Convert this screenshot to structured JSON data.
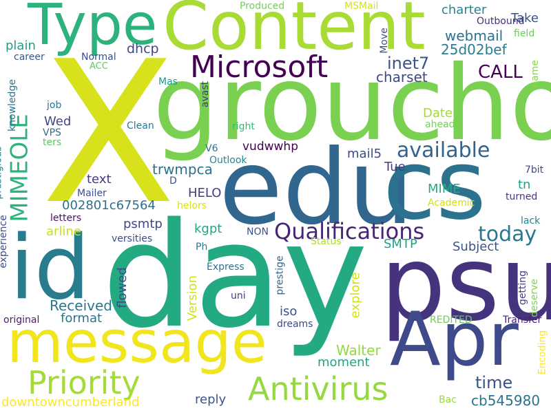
{
  "colors": {
    "background": "#ffffff",
    "palette": [
      "#fde725",
      "#b5de2b",
      "#6ece58",
      "#35b779",
      "#1f9e89",
      "#26828e",
      "#31688e",
      "#3e4989",
      "#482878",
      "#440154"
    ]
  },
  "words": [
    {
      "text": "X",
      "color": "#d8e21c"
    },
    {
      "text": "groucho",
      "color": "#7ad151"
    },
    {
      "text": "Content",
      "color": "#a8db34"
    },
    {
      "text": "Type",
      "color": "#2db27d"
    },
    {
      "text": "edu",
      "color": "#31668e"
    },
    {
      "text": "cs",
      "color": "#2c728e"
    },
    {
      "text": "day",
      "color": "#24aa83"
    },
    {
      "text": "id",
      "color": "#287c8e"
    },
    {
      "text": "psu",
      "color": "#46337e"
    },
    {
      "text": "Apr",
      "color": "#3e4a89"
    },
    {
      "text": "message",
      "color": "#f1e51d"
    },
    {
      "text": "Microsoft",
      "color": "#440154"
    },
    {
      "text": "Priority",
      "color": "#a5db36"
    },
    {
      "text": "Antivirus",
      "color": "#95d840"
    },
    {
      "text": "Qualifications",
      "color": "#482475"
    },
    {
      "text": "MIMEOLE",
      "color": "#2eb37c"
    },
    {
      "text": "available",
      "color": "#33638d"
    },
    {
      "text": "today",
      "color": "#2a788e"
    },
    {
      "text": "CALL",
      "color": "#440154"
    },
    {
      "text": "inet7",
      "color": "#3b528b"
    },
    {
      "text": "charset",
      "color": "#3f4788"
    },
    {
      "text": "webmail",
      "color": "#2c728e"
    },
    {
      "text": "25d02bef",
      "color": "#287d8e"
    },
    {
      "text": "charter",
      "color": "#26828e"
    },
    {
      "text": "Take",
      "color": "#3b528b"
    },
    {
      "text": "dhcp",
      "color": "#404688"
    },
    {
      "text": "plain",
      "color": "#1f9e89"
    },
    {
      "text": "career",
      "color": "#38588c"
    },
    {
      "text": "Normal",
      "color": "#3e4c8a"
    },
    {
      "text": "ACC",
      "color": "#5ec962"
    },
    {
      "text": "Produced",
      "color": "#73d056"
    },
    {
      "text": "MSMail",
      "color": "#d5e21a"
    },
    {
      "text": "Outbound",
      "color": "#46307e"
    },
    {
      "text": "field",
      "color": "#6ccd5a"
    },
    {
      "text": "Move",
      "color": "#3a548c"
    },
    {
      "text": "name",
      "color": "#8bd646"
    },
    {
      "text": "vudwwhp",
      "color": "#440154"
    },
    {
      "text": "mail5",
      "color": "#3e4989"
    },
    {
      "text": "trwmpca",
      "color": "#2d708e"
    },
    {
      "text": "Date",
      "color": "#9fda3a"
    },
    {
      "text": "ahead",
      "color": "#75d054"
    },
    {
      "text": "Tue",
      "color": "#433e85"
    },
    {
      "text": "7bit",
      "color": "#3e4c8a"
    },
    {
      "text": "tn",
      "color": "#1fa088"
    },
    {
      "text": "turned",
      "color": "#453581"
    },
    {
      "text": "lack",
      "color": "#26828e"
    },
    {
      "text": "Wed",
      "color": "#404588"
    },
    {
      "text": "VPS",
      "color": "#306a8e"
    },
    {
      "text": "ters",
      "color": "#5ac864"
    },
    {
      "text": "Clean",
      "color": "#2a788e"
    },
    {
      "text": "right",
      "color": "#37b878"
    },
    {
      "text": "V6",
      "color": "#2c718e"
    },
    {
      "text": "Outlook",
      "color": "#24878e"
    },
    {
      "text": "text",
      "color": "#443983"
    },
    {
      "text": "D",
      "color": "#3b528b"
    },
    {
      "text": "HELO",
      "color": "#433e85"
    },
    {
      "text": "Mailer",
      "color": "#3d4e8a"
    },
    {
      "text": "kgpt",
      "color": "#20a386"
    },
    {
      "text": "psmtp",
      "color": "#3e4989"
    },
    {
      "text": "002801c67564",
      "color": "#2d708e"
    },
    {
      "text": "helors",
      "color": "#d8e219"
    },
    {
      "text": "Academic",
      "color": "#d0e11c"
    },
    {
      "text": "MIME",
      "color": "#25ab82"
    },
    {
      "text": "SMTP",
      "color": "#1fa287"
    },
    {
      "text": "Subject",
      "color": "#3b528b"
    },
    {
      "text": "letters",
      "color": "#471164"
    },
    {
      "text": "arline",
      "color": "#c8e020"
    },
    {
      "text": "versities",
      "color": "#3e4989"
    },
    {
      "text": "NON",
      "color": "#3b528b"
    },
    {
      "text": "Ph",
      "color": "#2a788e"
    },
    {
      "text": "Status",
      "color": "#addc30"
    },
    {
      "text": "Express",
      "color": "#2b748e"
    },
    {
      "text": "uni",
      "color": "#433e85"
    },
    {
      "text": "Received",
      "color": "#2a768e"
    },
    {
      "text": "format",
      "color": "#2c728e"
    },
    {
      "text": "flowed",
      "color": "#3f4889"
    },
    {
      "text": "Version",
      "color": "#d2e21b"
    },
    {
      "text": "iso",
      "color": "#3b528b"
    },
    {
      "text": "dreams",
      "color": "#3f4889"
    },
    {
      "text": "prestige",
      "color": "#34608d"
    },
    {
      "text": "explore",
      "color": "#d0e11c"
    },
    {
      "text": "getting",
      "color": "#443a83"
    },
    {
      "text": "deserve",
      "color": "#7fd34e"
    },
    {
      "text": "REDITED",
      "color": "#6ccd5a"
    },
    {
      "text": "Transfer",
      "color": "#482173"
    },
    {
      "text": "Encoding",
      "color": "#fde725"
    },
    {
      "text": "original",
      "color": "#481a6c"
    },
    {
      "text": "Walter",
      "color": "#95d840"
    },
    {
      "text": "moment",
      "color": "#20a486"
    },
    {
      "text": "time",
      "color": "#3b528b"
    },
    {
      "text": "cb545980",
      "color": "#2c728e"
    },
    {
      "text": "reply",
      "color": "#3b528b"
    },
    {
      "text": "Bac",
      "color": "#9dd93b"
    },
    {
      "text": "downtowncumberland",
      "color": "#fde725"
    },
    {
      "text": "prestigious",
      "color": "#25848e"
    },
    {
      "text": "knowledge",
      "color": "#2d718e"
    },
    {
      "text": "experience",
      "color": "#3d4e8a"
    },
    {
      "text": "job",
      "color": "#2a768e"
    },
    {
      "text": "Mas",
      "color": "#1f9a8a"
    },
    {
      "text": "avast",
      "color": "#453882"
    }
  ]
}
